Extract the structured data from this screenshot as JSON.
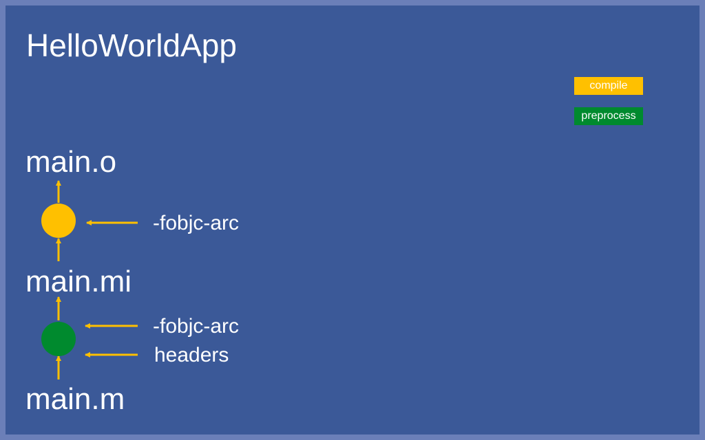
{
  "title": "HelloWorldApp",
  "files": {
    "output": "main.o",
    "intermediate": "main.mi",
    "source": "main.m"
  },
  "steps": {
    "compile": {
      "inputs": [
        "-fobjc-arc"
      ]
    },
    "preprocess": {
      "inputs": [
        "-fobjc-arc",
        "headers"
      ]
    }
  },
  "legend": [
    {
      "label": "compile",
      "color": "#ffc000"
    },
    {
      "label": "preprocess",
      "color": "#008a2e"
    }
  ],
  "colors": {
    "frame": "#6b7fb8",
    "background": "#3b5998",
    "arrow": "#ffc000",
    "compile": "#ffc000",
    "preprocess": "#008a2e"
  }
}
